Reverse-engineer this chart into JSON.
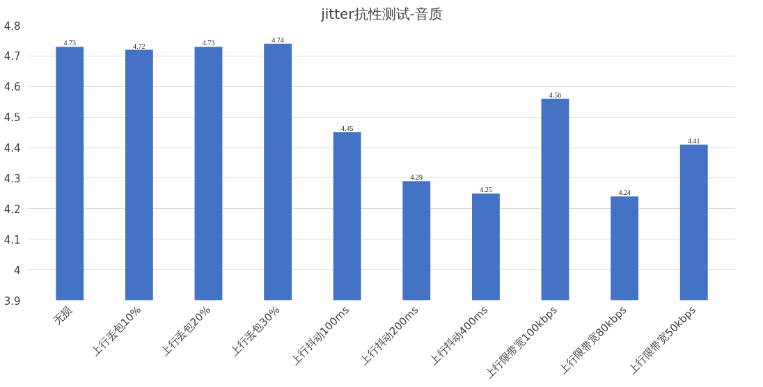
{
  "chart_data": {
    "type": "bar",
    "title": "jitter抗性测试-音质",
    "categories": [
      "无损",
      "上行丢包10%",
      "上行丢包20%",
      "上行丢包30%",
      "上行抖动100ms",
      "上行抖动200ms",
      "上行抖动400ms",
      "上行限带宽100kbps",
      "上行限带宽80kbps",
      "上行限带宽50kbps"
    ],
    "values": [
      4.73,
      4.72,
      4.73,
      4.74,
      4.45,
      4.29,
      4.25,
      4.56,
      4.24,
      4.41
    ],
    "color": "#4472c4",
    "ylim": [
      3.9,
      4.8
    ],
    "yticks": [
      3.9,
      4,
      4.1,
      4.2,
      4.3,
      4.4,
      4.5,
      4.6,
      4.7,
      4.8
    ],
    "grid": "y",
    "data_labels": true
  }
}
